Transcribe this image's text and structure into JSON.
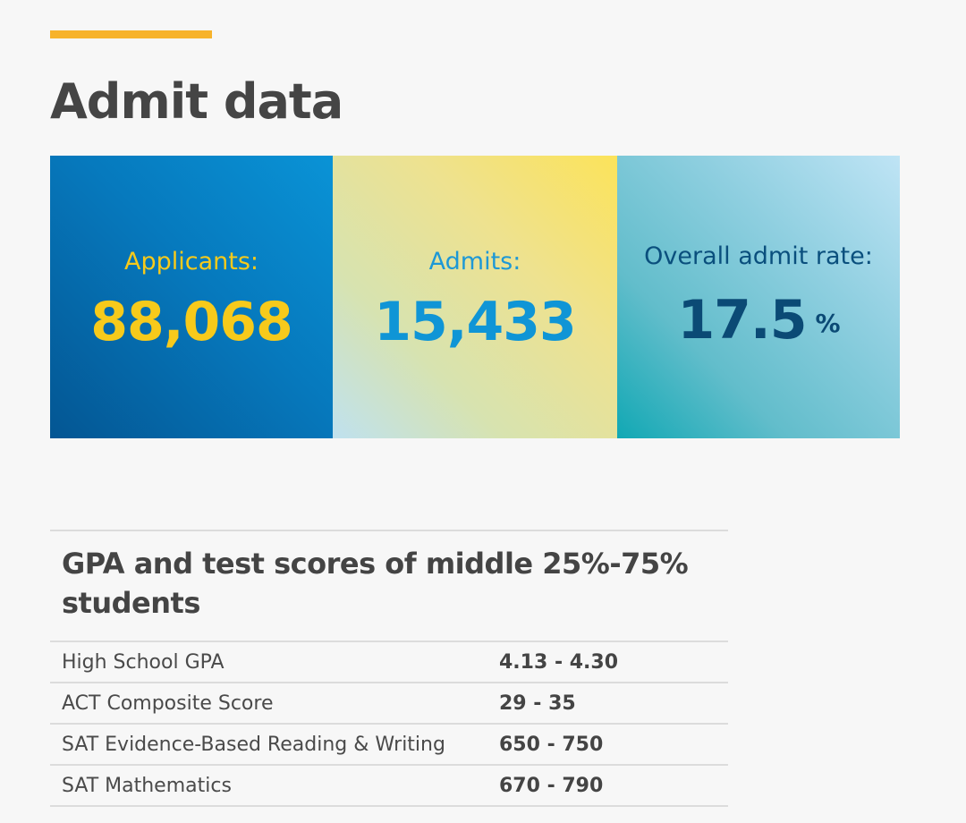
{
  "page": {
    "title": "Admit data"
  },
  "stats": [
    {
      "label": "Applicants:",
      "value": "88,068"
    },
    {
      "label": "Admits:",
      "value": "15,433"
    },
    {
      "label": "Overall admit rate:",
      "value": "17.5",
      "unit": "%"
    }
  ],
  "scores": {
    "title": "GPA and test scores of middle 25%-75% students",
    "rows": [
      {
        "label": "High School GPA",
        "value": "4.13 - 4.30"
      },
      {
        "label": "ACT Composite Score",
        "value": "29 - 35"
      },
      {
        "label": "SAT Evidence-Based Reading & Writing",
        "value": "650 - 750"
      },
      {
        "label": "SAT Mathematics",
        "value": "670 - 790"
      }
    ]
  },
  "colors": {
    "accent": "#f7b32b",
    "applicants": "#f7ca1b",
    "admits": "#0f95d6",
    "rate": "#0b4a75"
  }
}
